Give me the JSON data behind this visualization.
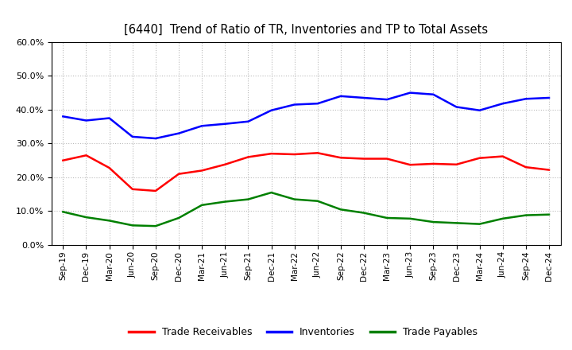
{
  "title": "[6440]  Trend of Ratio of TR, Inventories and TP to Total Assets",
  "x_labels": [
    "Sep-19",
    "Dec-19",
    "Mar-20",
    "Jun-20",
    "Sep-20",
    "Dec-20",
    "Mar-21",
    "Jun-21",
    "Sep-21",
    "Dec-21",
    "Mar-22",
    "Jun-22",
    "Sep-22",
    "Dec-22",
    "Mar-23",
    "Jun-23",
    "Sep-23",
    "Dec-23",
    "Mar-24",
    "Jun-24",
    "Sep-24",
    "Dec-24"
  ],
  "trade_receivables": [
    0.25,
    0.265,
    0.228,
    0.165,
    0.16,
    0.21,
    0.22,
    0.238,
    0.26,
    0.27,
    0.268,
    0.272,
    0.258,
    0.255,
    0.255,
    0.237,
    0.24,
    0.238,
    0.257,
    0.262,
    0.23,
    0.222
  ],
  "inventories": [
    0.38,
    0.368,
    0.375,
    0.32,
    0.315,
    0.33,
    0.352,
    0.358,
    0.365,
    0.398,
    0.415,
    0.418,
    0.44,
    0.435,
    0.43,
    0.45,
    0.445,
    0.408,
    0.398,
    0.418,
    0.432,
    0.435
  ],
  "trade_payables": [
    0.098,
    0.082,
    0.072,
    0.058,
    0.056,
    0.08,
    0.118,
    0.128,
    0.135,
    0.155,
    0.135,
    0.13,
    0.105,
    0.095,
    0.08,
    0.078,
    0.068,
    0.065,
    0.062,
    0.078,
    0.088,
    0.09
  ],
  "tr_color": "#ff0000",
  "inv_color": "#0000ff",
  "tp_color": "#008000",
  "ylim": [
    0.0,
    0.6
  ],
  "yticks": [
    0.0,
    0.1,
    0.2,
    0.3,
    0.4,
    0.5,
    0.6
  ],
  "background_color": "#ffffff",
  "grid_color": "#bbbbbb",
  "line_width": 1.8,
  "legend_labels": [
    "Trade Receivables",
    "Inventories",
    "Trade Payables"
  ]
}
